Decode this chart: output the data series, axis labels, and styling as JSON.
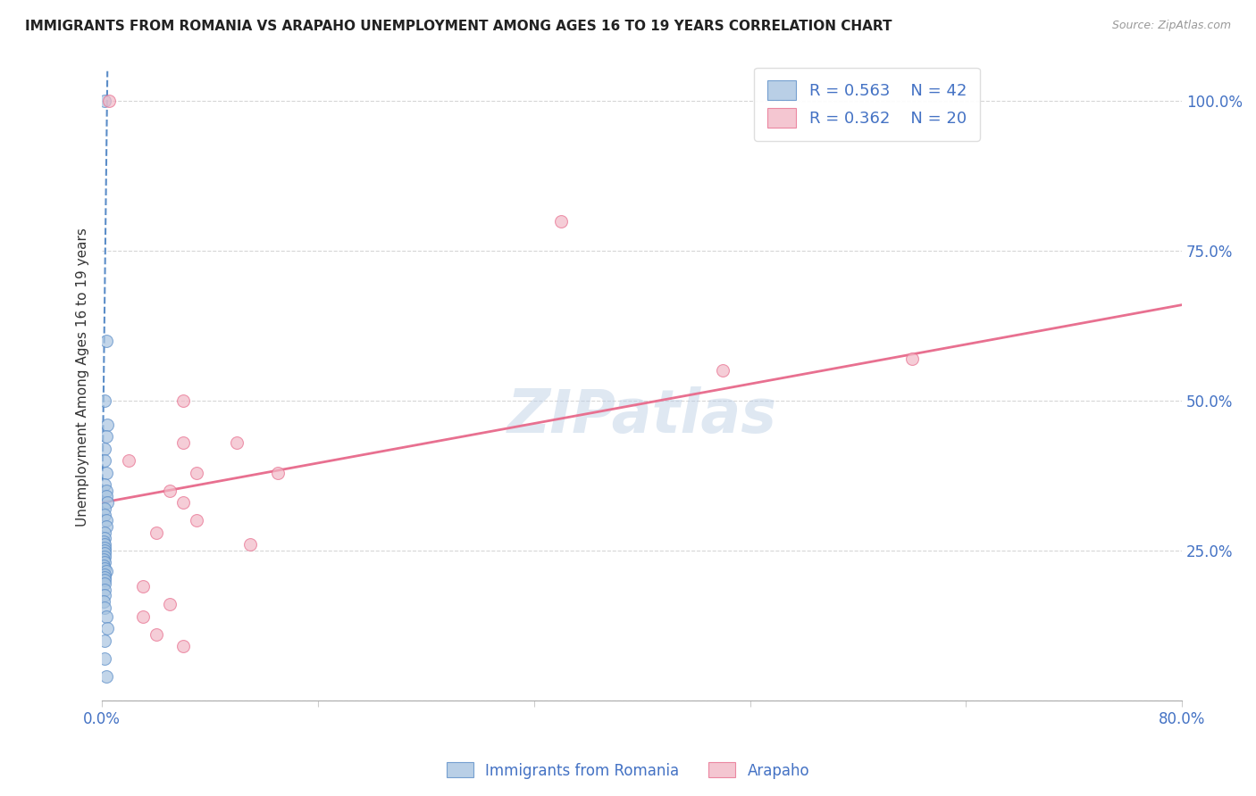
{
  "title": "IMMIGRANTS FROM ROMANIA VS ARAPAHO UNEMPLOYMENT AMONG AGES 16 TO 19 YEARS CORRELATION CHART",
  "source": "Source: ZipAtlas.com",
  "ylabel": "Unemployment Among Ages 16 to 19 years",
  "xlim": [
    0.0,
    0.8
  ],
  "ylim": [
    0.0,
    1.08
  ],
  "yticks": [
    0.0,
    0.25,
    0.5,
    0.75,
    1.0
  ],
  "ytick_labels": [
    "",
    "25.0%",
    "50.0%",
    "75.0%",
    "100.0%"
  ],
  "xticks": [
    0.0,
    0.16,
    0.32,
    0.48,
    0.64,
    0.8
  ],
  "xtick_labels": [
    "0.0%",
    "",
    "",
    "",
    "",
    "80.0%"
  ],
  "legend_blue_r": "R = 0.563",
  "legend_blue_n": "N = 42",
  "legend_pink_r": "R = 0.362",
  "legend_pink_n": "N = 20",
  "blue_color": "#A8C4E0",
  "pink_color": "#F2B8C6",
  "blue_line_color": "#5B8DC8",
  "pink_line_color": "#E87090",
  "text_color": "#4472C4",
  "watermark": "ZIPatlas",
  "blue_scatter_x": [
    0.002,
    0.003,
    0.002,
    0.004,
    0.003,
    0.002,
    0.002,
    0.003,
    0.002,
    0.003,
    0.003,
    0.004,
    0.002,
    0.002,
    0.003,
    0.003,
    0.002,
    0.002,
    0.001,
    0.002,
    0.002,
    0.002,
    0.002,
    0.002,
    0.001,
    0.002,
    0.001,
    0.002,
    0.003,
    0.002,
    0.002,
    0.002,
    0.002,
    0.002,
    0.002,
    0.001,
    0.002,
    0.003,
    0.004,
    0.002,
    0.002,
    0.003
  ],
  "blue_scatter_y": [
    1.0,
    0.6,
    0.5,
    0.46,
    0.44,
    0.42,
    0.4,
    0.38,
    0.36,
    0.35,
    0.34,
    0.33,
    0.32,
    0.31,
    0.3,
    0.29,
    0.28,
    0.27,
    0.265,
    0.26,
    0.255,
    0.25,
    0.245,
    0.24,
    0.235,
    0.23,
    0.225,
    0.22,
    0.215,
    0.21,
    0.205,
    0.2,
    0.195,
    0.185,
    0.175,
    0.165,
    0.155,
    0.14,
    0.12,
    0.1,
    0.07,
    0.04
  ],
  "pink_scatter_x": [
    0.005,
    0.34,
    0.06,
    0.1,
    0.06,
    0.02,
    0.07,
    0.13,
    0.05,
    0.06,
    0.07,
    0.04,
    0.6,
    0.46,
    0.11,
    0.03,
    0.05,
    0.03,
    0.04,
    0.06
  ],
  "pink_scatter_y": [
    1.0,
    0.8,
    0.5,
    0.43,
    0.43,
    0.4,
    0.38,
    0.38,
    0.35,
    0.33,
    0.3,
    0.28,
    0.57,
    0.55,
    0.26,
    0.19,
    0.16,
    0.14,
    0.11,
    0.09
  ],
  "blue_trend_x": [
    0.0,
    0.004
  ],
  "blue_trend_y": [
    0.3,
    1.05
  ],
  "pink_trend_x": [
    0.0,
    0.8
  ],
  "pink_trend_y": [
    0.33,
    0.66
  ],
  "grid_color": "#CCCCCC",
  "background_color": "#FFFFFF"
}
